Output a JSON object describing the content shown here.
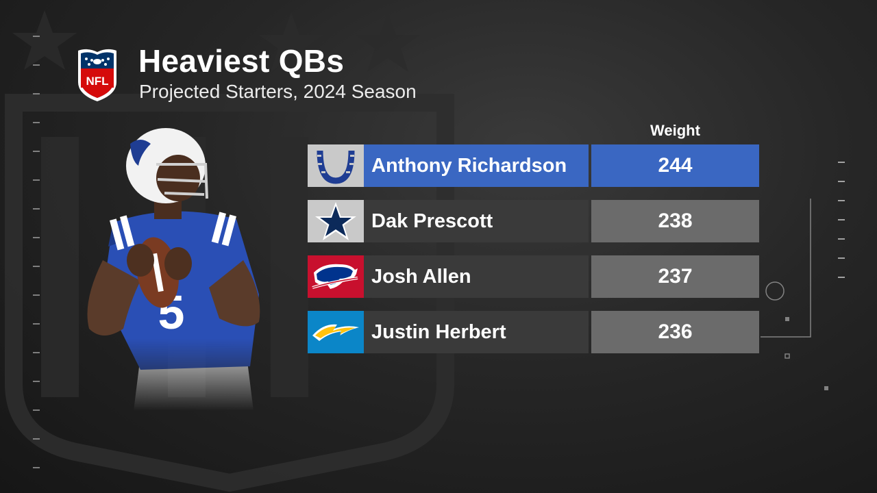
{
  "header": {
    "title": "Heaviest QBs",
    "subtitle": "Projected Starters, 2024 Season",
    "logo_text": "NFL"
  },
  "table": {
    "column_header": "Weight",
    "rows": [
      {
        "name": "Anthony Richardson",
        "weight": "244",
        "team_logo": "colts-horseshoe-icon",
        "highlight": true
      },
      {
        "name": "Dak Prescott",
        "weight": "238",
        "team_logo": "cowboys-star-icon",
        "highlight": false
      },
      {
        "name": "Josh Allen",
        "weight": "237",
        "team_logo": "bills-buffalo-icon",
        "highlight": false
      },
      {
        "name": "Justin Herbert",
        "weight": "236",
        "team_logo": "chargers-bolt-icon",
        "highlight": false
      }
    ]
  },
  "player_photo": {
    "jersey_number": "5"
  },
  "colors": {
    "highlight_row": "#3a67c2",
    "name_cell": "#3a3a3a",
    "value_cell": "#6b6b6b",
    "colts_blue": "#1f3d93",
    "cowboys_navy": "#0c2a5a",
    "bills_red": "#c8102e",
    "chargers_blue": "#0b86c8",
    "chargers_gold": "#ffc20e"
  }
}
